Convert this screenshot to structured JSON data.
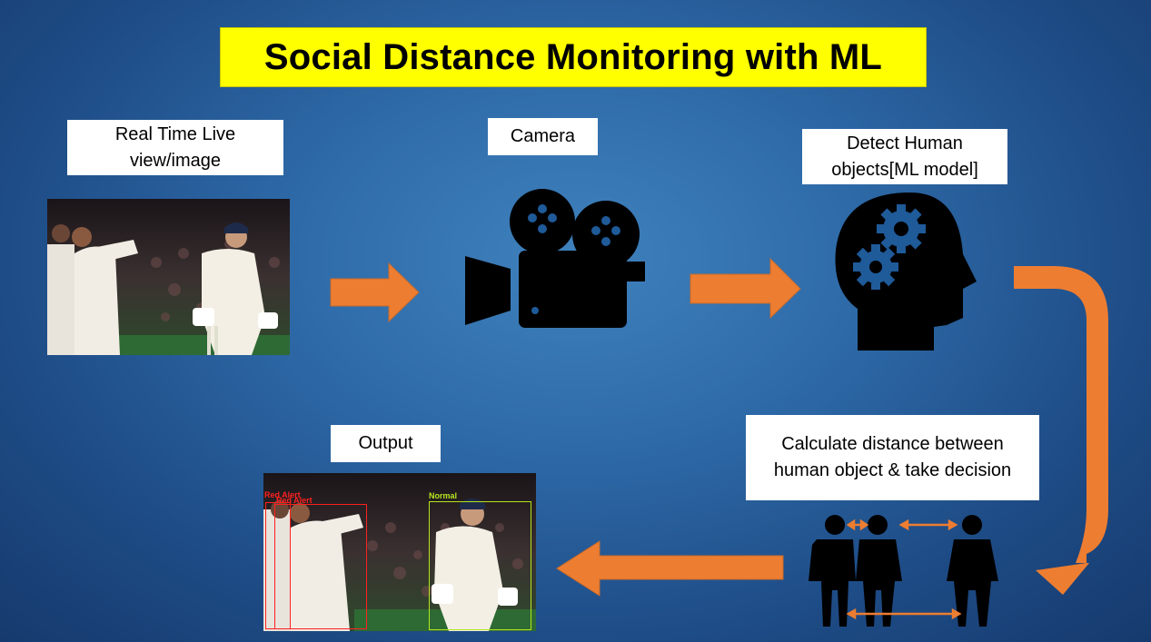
{
  "title": "Social Distance Monitoring with ML",
  "steps": {
    "input": "Real Time Live view/image",
    "camera": "Camera",
    "detect": "Detect Human objects[ML model]",
    "calculate": "Calculate distance between human object & take decision",
    "output": "Output"
  },
  "detections": {
    "red_label_1": "Red Alert",
    "red_label_2": "Red Alert",
    "green_label": "Normal"
  },
  "colors": {
    "arrow": "#ed7d31",
    "title_bg": "#ffff00",
    "red_box": "#ff2020",
    "green_box": "#b5e61d"
  }
}
